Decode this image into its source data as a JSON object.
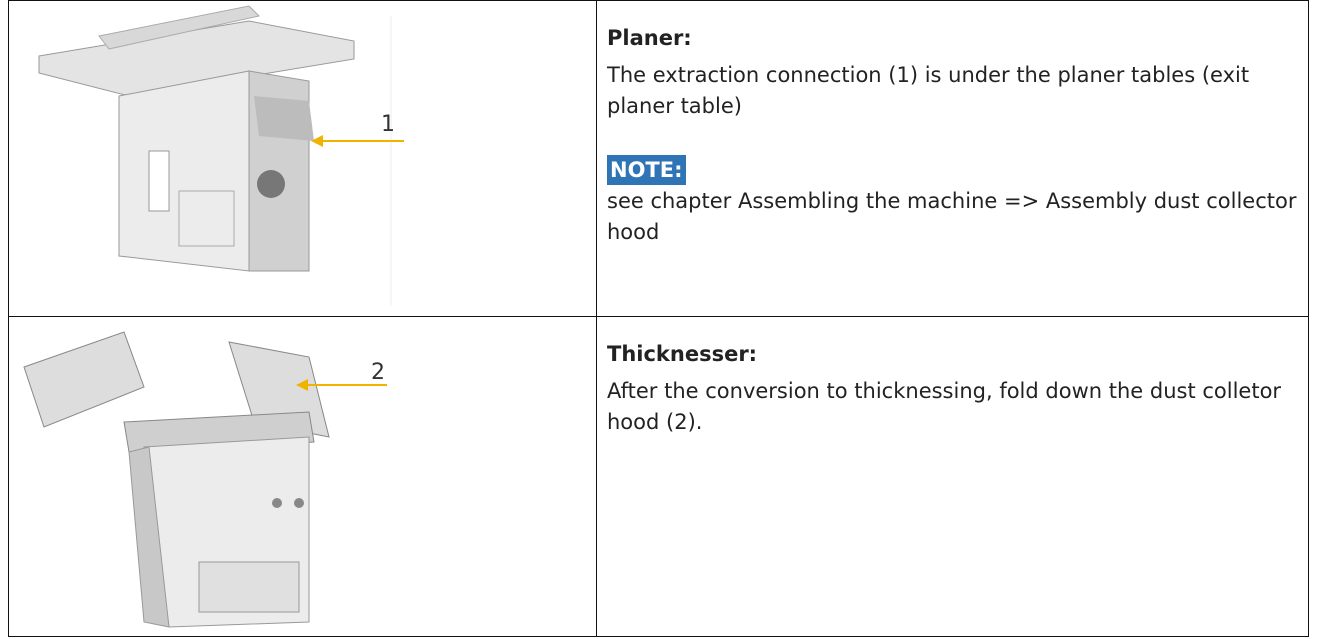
{
  "rows": [
    {
      "image_callout": "1",
      "heading": "Planer:",
      "paragraphs": [
        "The extraction connection (1) is under the planer tables (exit planer table)"
      ],
      "note": {
        "label": "NOTE:",
        "text": "see chapter Assembling the machine => Assembly dust collector hood"
      }
    },
    {
      "image_callout": "2",
      "heading": "Thicknesser:",
      "paragraphs": [
        "After the conversion to thicknessing, fold down the dust colletor hood (2)."
      ]
    }
  ]
}
